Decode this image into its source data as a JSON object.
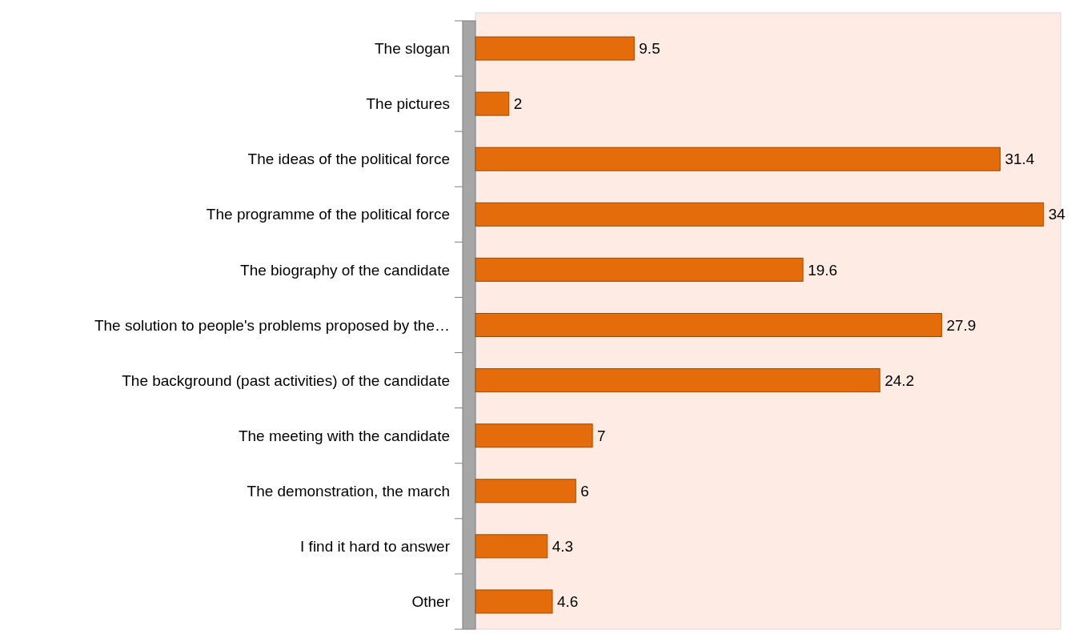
{
  "chart_data": {
    "type": "bar",
    "orientation": "horizontal",
    "categories": [
      "The slogan",
      "The pictures",
      "The ideas of the political force",
      "The programme of the political force",
      "The biography of the candidate",
      "The solution to people's problems proposed by the…",
      "The background (past activities) of the candidate",
      "The meeting with the candidate",
      "The demonstration, the march",
      "I find it hard to answer",
      "Other"
    ],
    "values": [
      9.5,
      2,
      31.4,
      34,
      19.6,
      27.9,
      24.2,
      7,
      6,
      4.3,
      4.6
    ],
    "color": "#e46c0a",
    "data_labels": true
  }
}
